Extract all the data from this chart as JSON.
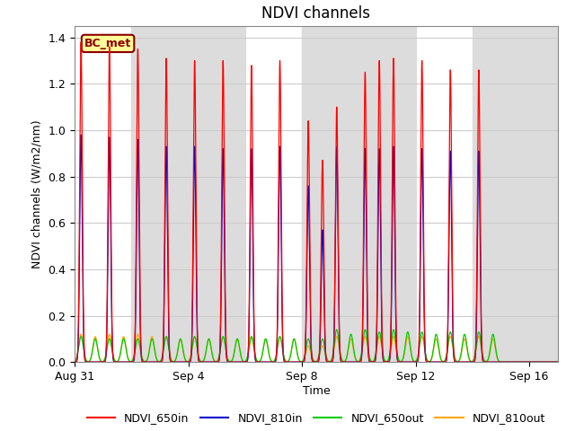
{
  "title": "NDVI channels",
  "xlabel": "Time",
  "ylabel": "NDVI channels (W/m2/nm)",
  "ylim": [
    0.0,
    1.45
  ],
  "xlim_days": [
    0,
    17
  ],
  "annotation_text": "BC_met",
  "annotation_color": "#8B0000",
  "annotation_bg": "#FFFF99",
  "series": [
    {
      "label": "NDVI_650in",
      "color": "#FF0000"
    },
    {
      "label": "NDVI_810in",
      "color": "#0000CC"
    },
    {
      "label": "NDVI_650out",
      "color": "#00CC00"
    },
    {
      "label": "NDVI_810out",
      "color": "#FFA500"
    }
  ],
  "background_bands": [
    {
      "start": 2,
      "end": 6,
      "color": "#DCDCDC"
    },
    {
      "start": 8,
      "end": 12,
      "color": "#DCDCDC"
    },
    {
      "start": 14,
      "end": 17,
      "color": "#DCDCDC"
    }
  ],
  "xtick_labels": [
    "Aug 31",
    "Sep 4",
    "Sep 8",
    "Sep 12",
    "Sep 16"
  ],
  "xtick_positions_days": [
    0,
    4,
    8,
    12,
    16
  ],
  "ytick_positions": [
    0.0,
    0.2,
    0.4,
    0.6,
    0.8,
    1.0,
    1.2,
    1.4
  ],
  "spike_data": {
    "spike_centers": [
      0.22,
      0.72,
      1.22,
      1.72,
      2.22,
      2.72,
      3.22,
      3.72,
      4.22,
      4.72,
      5.22,
      5.72,
      6.22,
      6.72,
      7.22,
      7.72,
      8.22,
      8.72,
      9.22,
      9.72,
      10.22,
      10.72,
      11.22,
      11.72,
      12.22,
      12.72,
      13.22,
      13.72,
      14.22,
      14.72,
      15.22,
      15.72,
      16.22,
      16.72
    ],
    "h_650in": [
      1.38,
      0.0,
      1.36,
      0.0,
      1.35,
      0.0,
      1.31,
      0.0,
      1.3,
      0.0,
      1.3,
      0.0,
      1.28,
      0.0,
      1.3,
      0.0,
      1.04,
      0.87,
      1.1,
      0.0,
      1.25,
      1.3,
      1.31,
      0.0,
      1.3,
      0.0,
      1.26,
      0.0,
      1.26,
      0.0,
      0.0,
      0.0,
      0.0,
      0.0
    ],
    "h_810in": [
      0.98,
      0.0,
      0.97,
      0.0,
      0.96,
      0.0,
      0.93,
      0.0,
      0.93,
      0.0,
      0.92,
      0.0,
      0.92,
      0.0,
      0.93,
      0.0,
      0.76,
      0.57,
      0.93,
      0.0,
      0.92,
      0.92,
      0.93,
      0.0,
      0.92,
      0.0,
      0.91,
      0.0,
      0.91,
      0.0,
      0.0,
      0.0,
      0.0,
      0.0
    ],
    "h_650out": [
      0.11,
      0.1,
      0.1,
      0.1,
      0.1,
      0.1,
      0.11,
      0.1,
      0.11,
      0.1,
      0.11,
      0.1,
      0.11,
      0.1,
      0.11,
      0.1,
      0.1,
      0.1,
      0.14,
      0.12,
      0.14,
      0.13,
      0.14,
      0.13,
      0.13,
      0.12,
      0.13,
      0.12,
      0.13,
      0.12,
      0.0,
      0.0,
      0.0,
      0.0
    ],
    "h_810out": [
      0.12,
      0.11,
      0.12,
      0.11,
      0.12,
      0.11,
      0.11,
      0.1,
      0.11,
      0.1,
      0.11,
      0.1,
      0.11,
      0.1,
      0.11,
      0.1,
      0.07,
      0.07,
      0.11,
      0.1,
      0.11,
      0.11,
      0.11,
      0.11,
      0.11,
      0.1,
      0.11,
      0.1,
      0.11,
      0.1,
      0.0,
      0.0,
      0.0,
      0.0
    ]
  },
  "title_fontsize": 12,
  "axis_label_fontsize": 9,
  "tick_fontsize": 9,
  "legend_fontsize": 9
}
